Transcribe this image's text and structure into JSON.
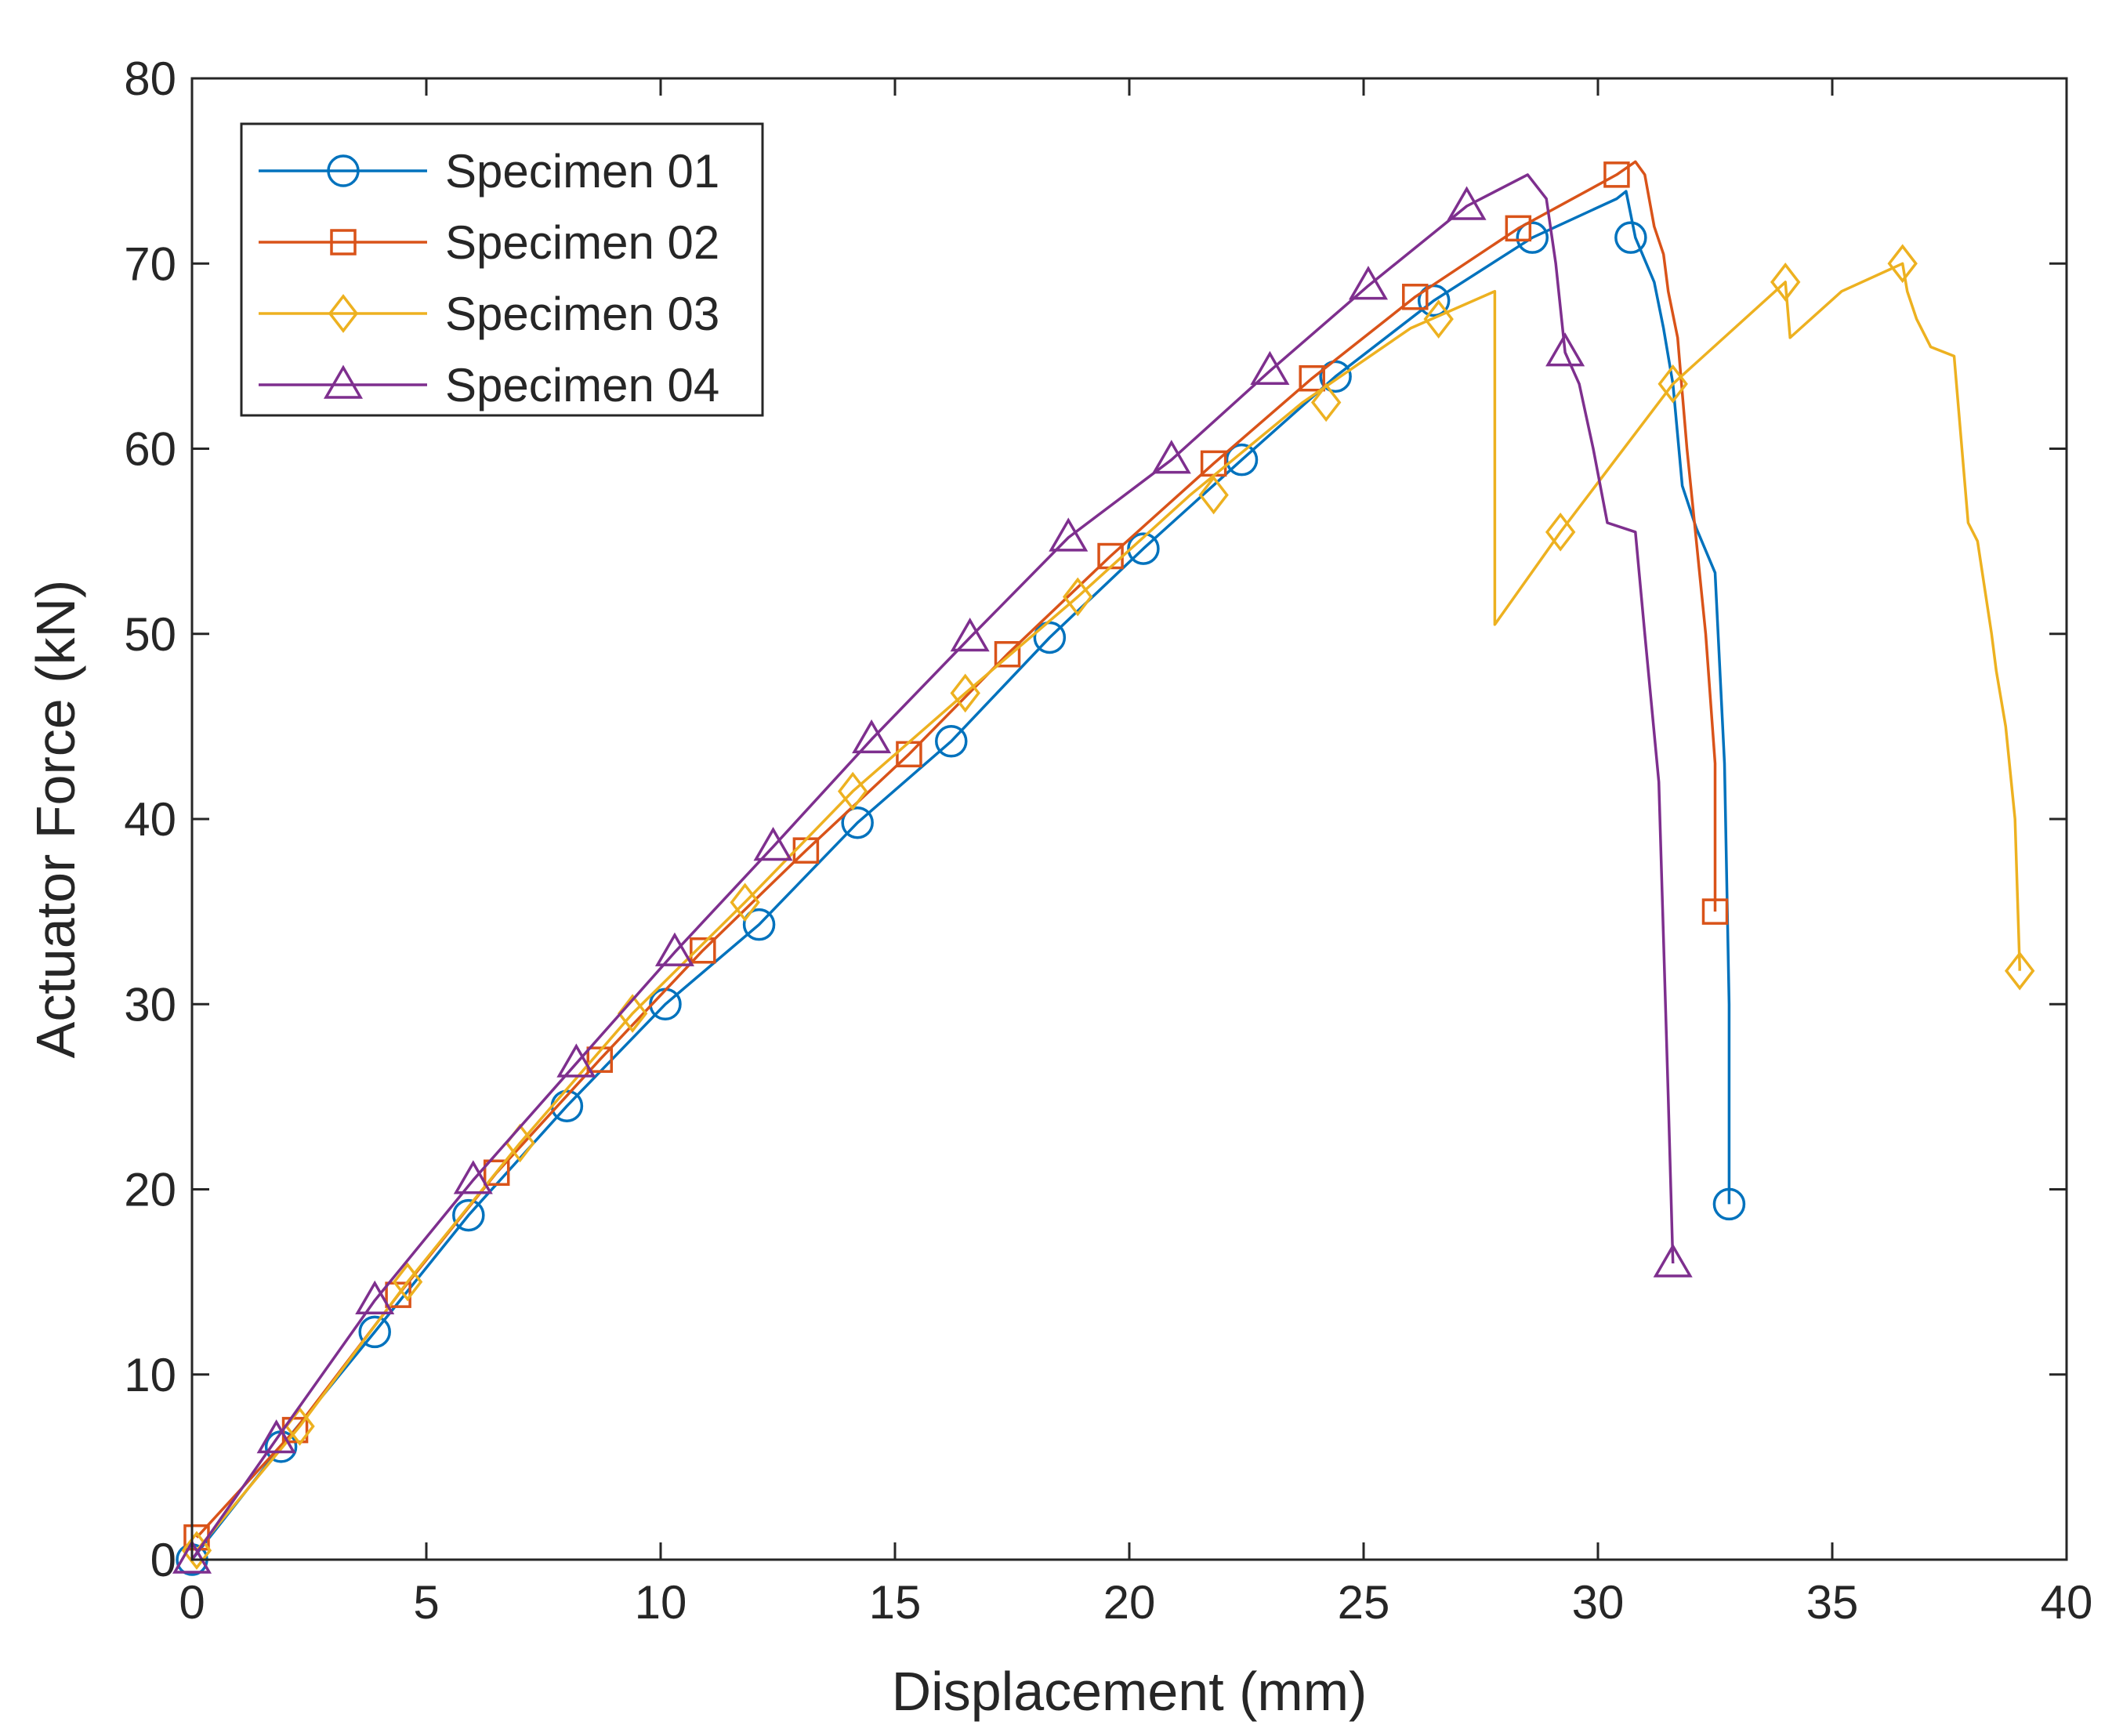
{
  "chart_data": {
    "type": "line",
    "title": "",
    "xlabel": "Displacement (mm)",
    "ylabel": "Actuator Force (kN)",
    "xlim": [
      0,
      40
    ],
    "ylim": [
      0,
      80
    ],
    "xticks": [
      "0",
      "5",
      "10",
      "15",
      "20",
      "25",
      "30",
      "35",
      "40"
    ],
    "yticks": [
      "0",
      "10",
      "20",
      "30",
      "40",
      "50",
      "60",
      "70",
      "80"
    ],
    "grid": false,
    "box": true,
    "legend_position": "top-left",
    "series": [
      {
        "name": "Specimen 01",
        "color": "#0072BD",
        "marker": "circle",
        "line": [
          [
            0,
            0
          ],
          [
            1.9,
            6.1
          ],
          [
            3.9,
            12.3
          ],
          [
            5.9,
            18.6
          ],
          [
            8.0,
            24.5
          ],
          [
            10.1,
            30.0
          ],
          [
            12.1,
            34.3
          ],
          [
            14.2,
            39.8
          ],
          [
            16.2,
            44.2
          ],
          [
            18.3,
            49.8
          ],
          [
            20.3,
            54.6
          ],
          [
            22.4,
            59.4
          ],
          [
            24.4,
            63.9
          ],
          [
            26.5,
            68.0
          ],
          [
            28.6,
            71.4
          ],
          [
            30.4,
            73.5
          ],
          [
            30.6,
            73.9
          ],
          [
            30.8,
            71.4
          ],
          [
            31.2,
            69.0
          ],
          [
            31.4,
            66.5
          ],
          [
            31.6,
            63.5
          ],
          [
            31.8,
            58.0
          ],
          [
            32.1,
            55.7
          ],
          [
            32.5,
            53.3
          ],
          [
            32.7,
            43.0
          ],
          [
            32.8,
            30.0
          ],
          [
            32.8,
            19.2
          ]
        ],
        "markers": [
          [
            0,
            0
          ],
          [
            1.9,
            6.1
          ],
          [
            3.9,
            12.3
          ],
          [
            5.9,
            18.6
          ],
          [
            8.0,
            24.5
          ],
          [
            10.1,
            30.0
          ],
          [
            12.1,
            34.3
          ],
          [
            14.2,
            39.8
          ],
          [
            16.2,
            44.2
          ],
          [
            18.3,
            49.8
          ],
          [
            20.3,
            54.6
          ],
          [
            22.4,
            59.4
          ],
          [
            24.4,
            63.9
          ],
          [
            26.5,
            68.0
          ],
          [
            28.6,
            71.4
          ],
          [
            30.7,
            71.4
          ],
          [
            32.8,
            19.2
          ]
        ]
      },
      {
        "name": "Specimen 02",
        "color": "#D95319",
        "marker": "square",
        "line": [
          [
            0.1,
            1.2
          ],
          [
            2.2,
            7.0
          ],
          [
            4.4,
            14.3
          ],
          [
            6.5,
            20.9
          ],
          [
            8.7,
            27.0
          ],
          [
            10.9,
            32.9
          ],
          [
            13.1,
            38.3
          ],
          [
            15.3,
            43.5
          ],
          [
            17.4,
            48.9
          ],
          [
            19.6,
            54.2
          ],
          [
            21.8,
            59.2
          ],
          [
            23.9,
            63.8
          ],
          [
            26.1,
            68.2
          ],
          [
            28.3,
            71.9
          ],
          [
            30.4,
            74.8
          ],
          [
            30.8,
            75.5
          ],
          [
            31.0,
            74.8
          ],
          [
            31.2,
            72.0
          ],
          [
            31.4,
            70.5
          ],
          [
            31.5,
            68.5
          ],
          [
            31.7,
            66.0
          ],
          [
            31.9,
            60.0
          ],
          [
            32.1,
            55.0
          ],
          [
            32.3,
            50.0
          ],
          [
            32.5,
            43.0
          ],
          [
            32.5,
            35.0
          ]
        ],
        "markers": [
          [
            0.1,
            1.2
          ],
          [
            2.2,
            7.0
          ],
          [
            4.4,
            14.3
          ],
          [
            6.5,
            20.9
          ],
          [
            8.7,
            27.0
          ],
          [
            10.9,
            32.9
          ],
          [
            13.1,
            38.3
          ],
          [
            15.3,
            43.5
          ],
          [
            17.4,
            48.9
          ],
          [
            19.6,
            54.2
          ],
          [
            21.8,
            59.2
          ],
          [
            23.9,
            63.8
          ],
          [
            26.1,
            68.2
          ],
          [
            28.3,
            71.9
          ],
          [
            30.4,
            74.8
          ],
          [
            32.5,
            35.0
          ]
        ]
      },
      {
        "name": "Specimen 03",
        "color": "#EDB120",
        "marker": "diamond",
        "line": [
          [
            0.1,
            0.5
          ],
          [
            2.3,
            7.2
          ],
          [
            4.6,
            15.0
          ],
          [
            7.0,
            22.5
          ],
          [
            9.4,
            29.5
          ],
          [
            11.8,
            35.5
          ],
          [
            14.1,
            41.5
          ],
          [
            16.5,
            46.8
          ],
          [
            18.9,
            52.0
          ],
          [
            21.3,
            57.5
          ],
          [
            23.7,
            62.5
          ],
          [
            26.0,
            66.5
          ],
          [
            27.8,
            68.5
          ],
          [
            27.8,
            50.5
          ],
          [
            29.2,
            55.5
          ],
          [
            31.6,
            63.5
          ],
          [
            34.0,
            69.0
          ],
          [
            34.1,
            66.0
          ],
          [
            35.2,
            68.5
          ],
          [
            36.5,
            70.0
          ],
          [
            36.6,
            68.5
          ],
          [
            36.8,
            67.0
          ],
          [
            37.1,
            65.5
          ],
          [
            37.6,
            65.0
          ],
          [
            37.9,
            56.0
          ],
          [
            38.1,
            55.0
          ],
          [
            38.4,
            50.0
          ],
          [
            38.5,
            48.0
          ],
          [
            38.7,
            45.0
          ],
          [
            38.9,
            40.0
          ],
          [
            39.0,
            32.0
          ],
          [
            39.0,
            31.8
          ]
        ],
        "markers": [
          [
            0.1,
            0.5
          ],
          [
            2.3,
            7.2
          ],
          [
            4.6,
            15.0
          ],
          [
            7.0,
            22.5
          ],
          [
            9.4,
            29.5
          ],
          [
            11.8,
            35.5
          ],
          [
            14.1,
            41.5
          ],
          [
            16.5,
            46.8
          ],
          [
            18.9,
            52.0
          ],
          [
            21.8,
            57.5
          ],
          [
            24.2,
            62.5
          ],
          [
            26.6,
            67.0
          ],
          [
            29.2,
            55.5
          ],
          [
            31.6,
            63.5
          ],
          [
            34.0,
            69.0
          ],
          [
            36.5,
            70.0
          ],
          [
            39.0,
            31.8
          ]
        ]
      },
      {
        "name": "Specimen 04",
        "color": "#7E2F8E",
        "marker": "triangle",
        "line": [
          [
            0,
            0
          ],
          [
            1.8,
            6.5
          ],
          [
            3.9,
            14.0
          ],
          [
            6.0,
            20.5
          ],
          [
            8.2,
            26.8
          ],
          [
            10.3,
            32.8
          ],
          [
            12.4,
            38.5
          ],
          [
            14.5,
            44.3
          ],
          [
            16.6,
            49.8
          ],
          [
            18.7,
            55.2
          ],
          [
            20.9,
            59.4
          ],
          [
            23.0,
            64.2
          ],
          [
            25.1,
            68.8
          ],
          [
            27.2,
            73.1
          ],
          [
            28.5,
            74.8
          ],
          [
            28.9,
            73.5
          ],
          [
            29.1,
            70.0
          ],
          [
            29.3,
            65.2
          ],
          [
            29.6,
            63.5
          ],
          [
            29.9,
            60.0
          ],
          [
            30.2,
            56.0
          ],
          [
            30.8,
            55.5
          ],
          [
            31.0,
            50.0
          ],
          [
            31.3,
            42.0
          ],
          [
            31.5,
            25.0
          ],
          [
            31.6,
            16.0
          ]
        ],
        "markers": [
          [
            0,
            0
          ],
          [
            1.8,
            6.5
          ],
          [
            3.9,
            14.0
          ],
          [
            6.0,
            20.5
          ],
          [
            8.2,
            26.8
          ],
          [
            10.3,
            32.8
          ],
          [
            12.4,
            38.5
          ],
          [
            14.5,
            44.3
          ],
          [
            16.6,
            49.8
          ],
          [
            18.7,
            55.2
          ],
          [
            20.9,
            59.4
          ],
          [
            23.0,
            64.2
          ],
          [
            25.1,
            68.8
          ],
          [
            27.2,
            73.1
          ],
          [
            29.3,
            65.2
          ],
          [
            31.6,
            16.0
          ]
        ]
      }
    ]
  }
}
